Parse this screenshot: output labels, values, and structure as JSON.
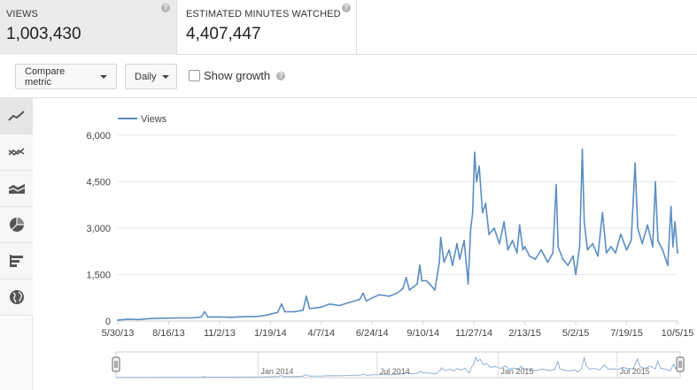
{
  "metrics": [
    {
      "title": "VIEWS",
      "value": "1,003,430",
      "help": "?"
    },
    {
      "title": "ESTIMATED MINUTES WATCHED",
      "value": "4,407,447",
      "help": "?"
    }
  ],
  "toolbar": {
    "compare_label": "Compare metric",
    "interval_label": "Daily",
    "show_growth_label": "Show growth",
    "show_growth_checked": false,
    "help": "?"
  },
  "rail": [
    {
      "icon": "line-chart-icon"
    },
    {
      "icon": "multiline-chart-icon"
    },
    {
      "icon": "stacked-area-chart-icon"
    },
    {
      "icon": "pie-chart-icon"
    },
    {
      "icon": "bar-chart-icon"
    },
    {
      "icon": "globe-icon"
    }
  ],
  "chart_data": {
    "type": "line",
    "title": "",
    "xlabel": "",
    "ylabel": "",
    "legend": "top-left",
    "grid": true,
    "ylim": [
      0,
      6000
    ],
    "xlim": [
      "2013-05-30",
      "2015-10-05"
    ],
    "y_ticks": [
      "0",
      "1,500",
      "3,000",
      "4,500",
      "6,000"
    ],
    "x_ticks": [
      "5/30/13",
      "8/16/13",
      "11/2/13",
      "1/19/14",
      "4/7/14",
      "6/24/14",
      "9/10/14",
      "11/27/14",
      "2/13/15",
      "5/2/15",
      "7/19/15",
      "10/5/15"
    ],
    "color": "#5b8ec2",
    "series": [
      {
        "name": "Views",
        "points": [
          [
            "2013-05-30",
            30
          ],
          [
            "2013-06-15",
            60
          ],
          [
            "2013-07-01",
            50
          ],
          [
            "2013-07-20",
            80
          ],
          [
            "2013-08-10",
            90
          ],
          [
            "2013-09-01",
            100
          ],
          [
            "2013-09-20",
            100
          ],
          [
            "2013-10-05",
            130
          ],
          [
            "2013-10-10",
            300
          ],
          [
            "2013-10-15",
            130
          ],
          [
            "2013-11-02",
            130
          ],
          [
            "2013-11-20",
            120
          ],
          [
            "2013-12-10",
            140
          ],
          [
            "2013-12-31",
            150
          ],
          [
            "2014-01-10",
            180
          ],
          [
            "2014-01-19",
            220
          ],
          [
            "2014-01-30",
            280
          ],
          [
            "2014-02-05",
            550
          ],
          [
            "2014-02-10",
            300
          ],
          [
            "2014-02-25",
            300
          ],
          [
            "2014-03-10",
            350
          ],
          [
            "2014-03-15",
            800
          ],
          [
            "2014-03-20",
            400
          ],
          [
            "2014-04-07",
            450
          ],
          [
            "2014-04-20",
            550
          ],
          [
            "2014-05-05",
            500
          ],
          [
            "2014-05-20",
            600
          ],
          [
            "2014-06-05",
            700
          ],
          [
            "2014-06-10",
            900
          ],
          [
            "2014-06-15",
            650
          ],
          [
            "2014-06-24",
            750
          ],
          [
            "2014-07-05",
            850
          ],
          [
            "2014-07-20",
            800
          ],
          [
            "2014-08-01",
            900
          ],
          [
            "2014-08-10",
            1050
          ],
          [
            "2014-08-15",
            1400
          ],
          [
            "2014-08-20",
            1000
          ],
          [
            "2014-09-01",
            1200
          ],
          [
            "2014-09-05",
            1800
          ],
          [
            "2014-09-08",
            1300
          ],
          [
            "2014-09-15",
            1300
          ],
          [
            "2014-09-20",
            1200
          ],
          [
            "2014-09-28",
            1000
          ],
          [
            "2014-10-05",
            1900
          ],
          [
            "2014-10-07",
            2700
          ],
          [
            "2014-10-12",
            1900
          ],
          [
            "2014-10-20",
            2300
          ],
          [
            "2014-10-25",
            1800
          ],
          [
            "2014-11-01",
            2500
          ],
          [
            "2014-11-05",
            2000
          ],
          [
            "2014-11-12",
            2600
          ],
          [
            "2014-11-18",
            1200
          ],
          [
            "2014-11-22",
            3000
          ],
          [
            "2014-11-25",
            3500
          ],
          [
            "2014-11-28",
            5450
          ],
          [
            "2014-12-01",
            4500
          ],
          [
            "2014-12-05",
            5000
          ],
          [
            "2014-12-10",
            3500
          ],
          [
            "2014-12-15",
            3800
          ],
          [
            "2014-12-20",
            2800
          ],
          [
            "2014-12-28",
            3000
          ],
          [
            "2015-01-05",
            2500
          ],
          [
            "2015-01-12",
            3200
          ],
          [
            "2015-01-18",
            2300
          ],
          [
            "2015-01-25",
            2600
          ],
          [
            "2015-02-01",
            2200
          ],
          [
            "2015-02-05",
            3100
          ],
          [
            "2015-02-10",
            2300
          ],
          [
            "2015-02-13",
            2400
          ],
          [
            "2015-02-20",
            2100
          ],
          [
            "2015-03-01",
            2000
          ],
          [
            "2015-03-10",
            2300
          ],
          [
            "2015-03-20",
            1900
          ],
          [
            "2015-03-28",
            2200
          ],
          [
            "2015-04-02",
            4400
          ],
          [
            "2015-04-05",
            2400
          ],
          [
            "2015-04-12",
            2000
          ],
          [
            "2015-04-20",
            1800
          ],
          [
            "2015-04-28",
            2100
          ],
          [
            "2015-05-02",
            1500
          ],
          [
            "2015-05-08",
            2400
          ],
          [
            "2015-05-12",
            5550
          ],
          [
            "2015-05-15",
            3200
          ],
          [
            "2015-05-20",
            2300
          ],
          [
            "2015-05-28",
            2500
          ],
          [
            "2015-06-05",
            2100
          ],
          [
            "2015-06-12",
            3500
          ],
          [
            "2015-06-18",
            2200
          ],
          [
            "2015-06-25",
            2400
          ],
          [
            "2015-07-02",
            2200
          ],
          [
            "2015-07-10",
            2800
          ],
          [
            "2015-07-19",
            2300
          ],
          [
            "2015-07-26",
            2600
          ],
          [
            "2015-08-01",
            5100
          ],
          [
            "2015-08-05",
            3000
          ],
          [
            "2015-08-12",
            2500
          ],
          [
            "2015-08-20",
            3100
          ],
          [
            "2015-08-28",
            2400
          ],
          [
            "2015-09-01",
            4500
          ],
          [
            "2015-09-05",
            2600
          ],
          [
            "2015-09-12",
            2300
          ],
          [
            "2015-09-20",
            1800
          ],
          [
            "2015-09-25",
            3700
          ],
          [
            "2015-09-28",
            2400
          ],
          [
            "2015-10-01",
            3200
          ],
          [
            "2015-10-05",
            2200
          ]
        ]
      }
    ]
  },
  "navigator": {
    "labels": [
      "Jan 2014",
      "Jul 2014",
      "Jan 2015",
      "Jul 2015"
    ]
  }
}
